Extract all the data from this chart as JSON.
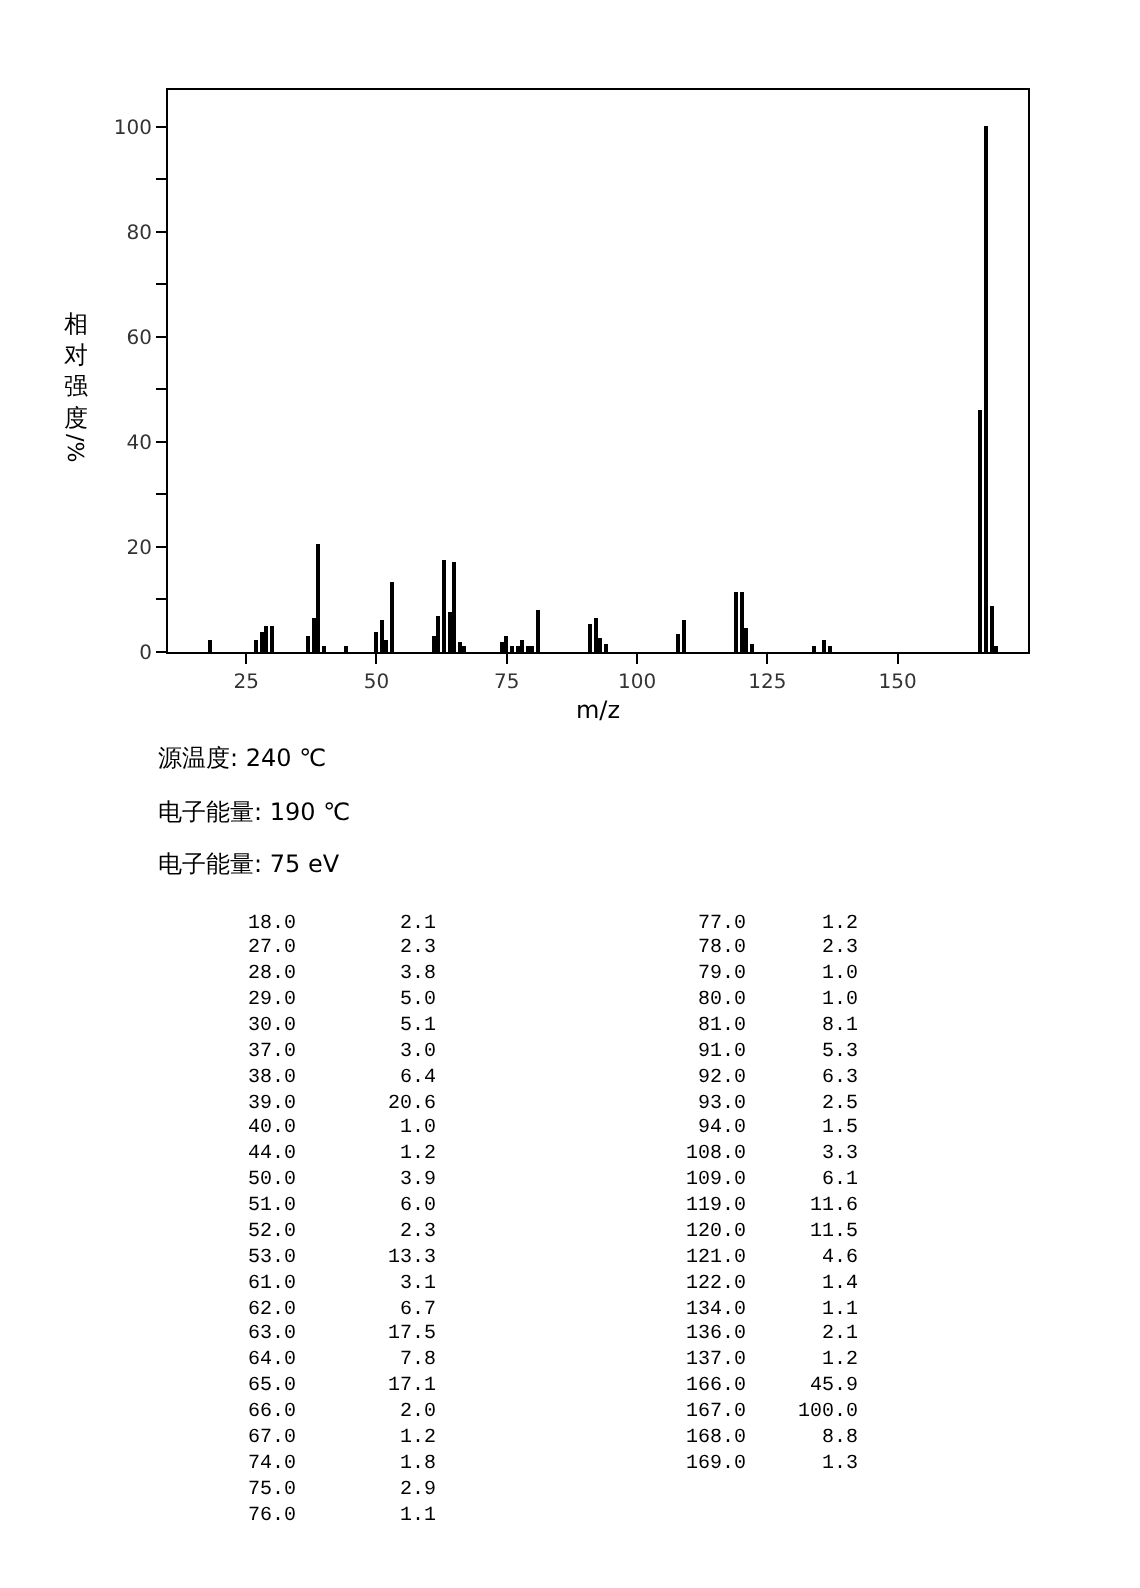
{
  "chart_data": {
    "type": "bar",
    "xlabel": "m/z",
    "ylabel": "相对强度/%",
    "x": [
      18.0,
      27.0,
      28.0,
      29.0,
      30.0,
      37.0,
      38.0,
      39.0,
      40.0,
      44.0,
      50.0,
      51.0,
      52.0,
      53.0,
      61.0,
      62.0,
      63.0,
      64.0,
      65.0,
      66.0,
      67.0,
      74.0,
      75.0,
      76.0,
      77.0,
      78.0,
      79.0,
      80.0,
      81.0,
      91.0,
      92.0,
      93.0,
      94.0,
      108.0,
      109.0,
      119.0,
      120.0,
      121.0,
      122.0,
      134.0,
      136.0,
      137.0,
      166.0,
      167.0,
      168.0,
      169.0
    ],
    "values": [
      2.1,
      2.3,
      3.8,
      5.0,
      5.1,
      3.0,
      6.4,
      20.6,
      1.0,
      1.2,
      3.9,
      6.0,
      2.3,
      13.3,
      3.1,
      6.7,
      17.5,
      7.8,
      17.1,
      2.0,
      1.2,
      1.8,
      2.9,
      1.1,
      1.2,
      2.3,
      1.0,
      1.0,
      8.1,
      5.3,
      6.3,
      2.5,
      1.5,
      3.3,
      6.1,
      11.6,
      11.5,
      4.6,
      1.4,
      1.1,
      2.1,
      1.2,
      45.9,
      100.0,
      8.8,
      1.3
    ],
    "color": "#000000",
    "xlim": [
      10,
      175
    ],
    "xticks": [
      25,
      50,
      75,
      100,
      125,
      150
    ],
    "ylim": [
      0,
      107
    ],
    "yticks": [
      0,
      {
        "value": 10,
        "label": null
      },
      20,
      {
        "value": 30,
        "label": null
      },
      40,
      {
        "value": 50,
        "label": null
      },
      60,
      {
        "value": 70,
        "label": null
      },
      80,
      {
        "value": 90,
        "label": null
      },
      100
    ],
    "annotations": [
      "源温度: 240 ℃",
      "电子能量: 190 ℃",
      "电子能量: 75 eV",
      "18.0",
      "2.1",
      "27.0",
      "2.3",
      "28.0",
      "3.8",
      "29.0",
      "5.0",
      "30.0",
      "5.1",
      "37.0",
      "3.0",
      "38.0",
      "6.4",
      "39.0",
      "20.6",
      "40.0",
      "1.0",
      "44.0",
      "1.2",
      "50.0",
      "3.9",
      "51.0",
      "6.0",
      "52.0",
      "2.3",
      "53.0",
      "13.3",
      "61.0",
      "3.1",
      "62.0",
      "6.7",
      "63.0",
      "17.5",
      "64.0",
      "7.8",
      "65.0",
      "17.1",
      "66.0",
      "2.0",
      "67.0",
      "1.2",
      "74.0",
      "1.8",
      "75.0",
      "2.9",
      "76.0",
      "1.1",
      "77.0",
      "1.2",
      "78.0",
      "2.3",
      "79.0",
      "1.0",
      "80.0",
      "1.0",
      "81.0",
      "8.1",
      "91.0",
      "5.3",
      "92.0",
      "6.3",
      "93.0",
      "2.5",
      "94.0",
      "1.5",
      "108.0",
      "3.3",
      "109.0",
      "6.1",
      "119.0",
      "11.6",
      "120.0",
      "11.5",
      "121.0",
      "4.6",
      "122.0",
      "1.4",
      "134.0",
      "1.1",
      "136.0",
      "2.1",
      "137.0",
      "1.2",
      "166.0",
      "45.9",
      "167.0",
      "100.0",
      "168.0",
      "8.8",
      "169.0",
      "1.3"
    ]
  }
}
